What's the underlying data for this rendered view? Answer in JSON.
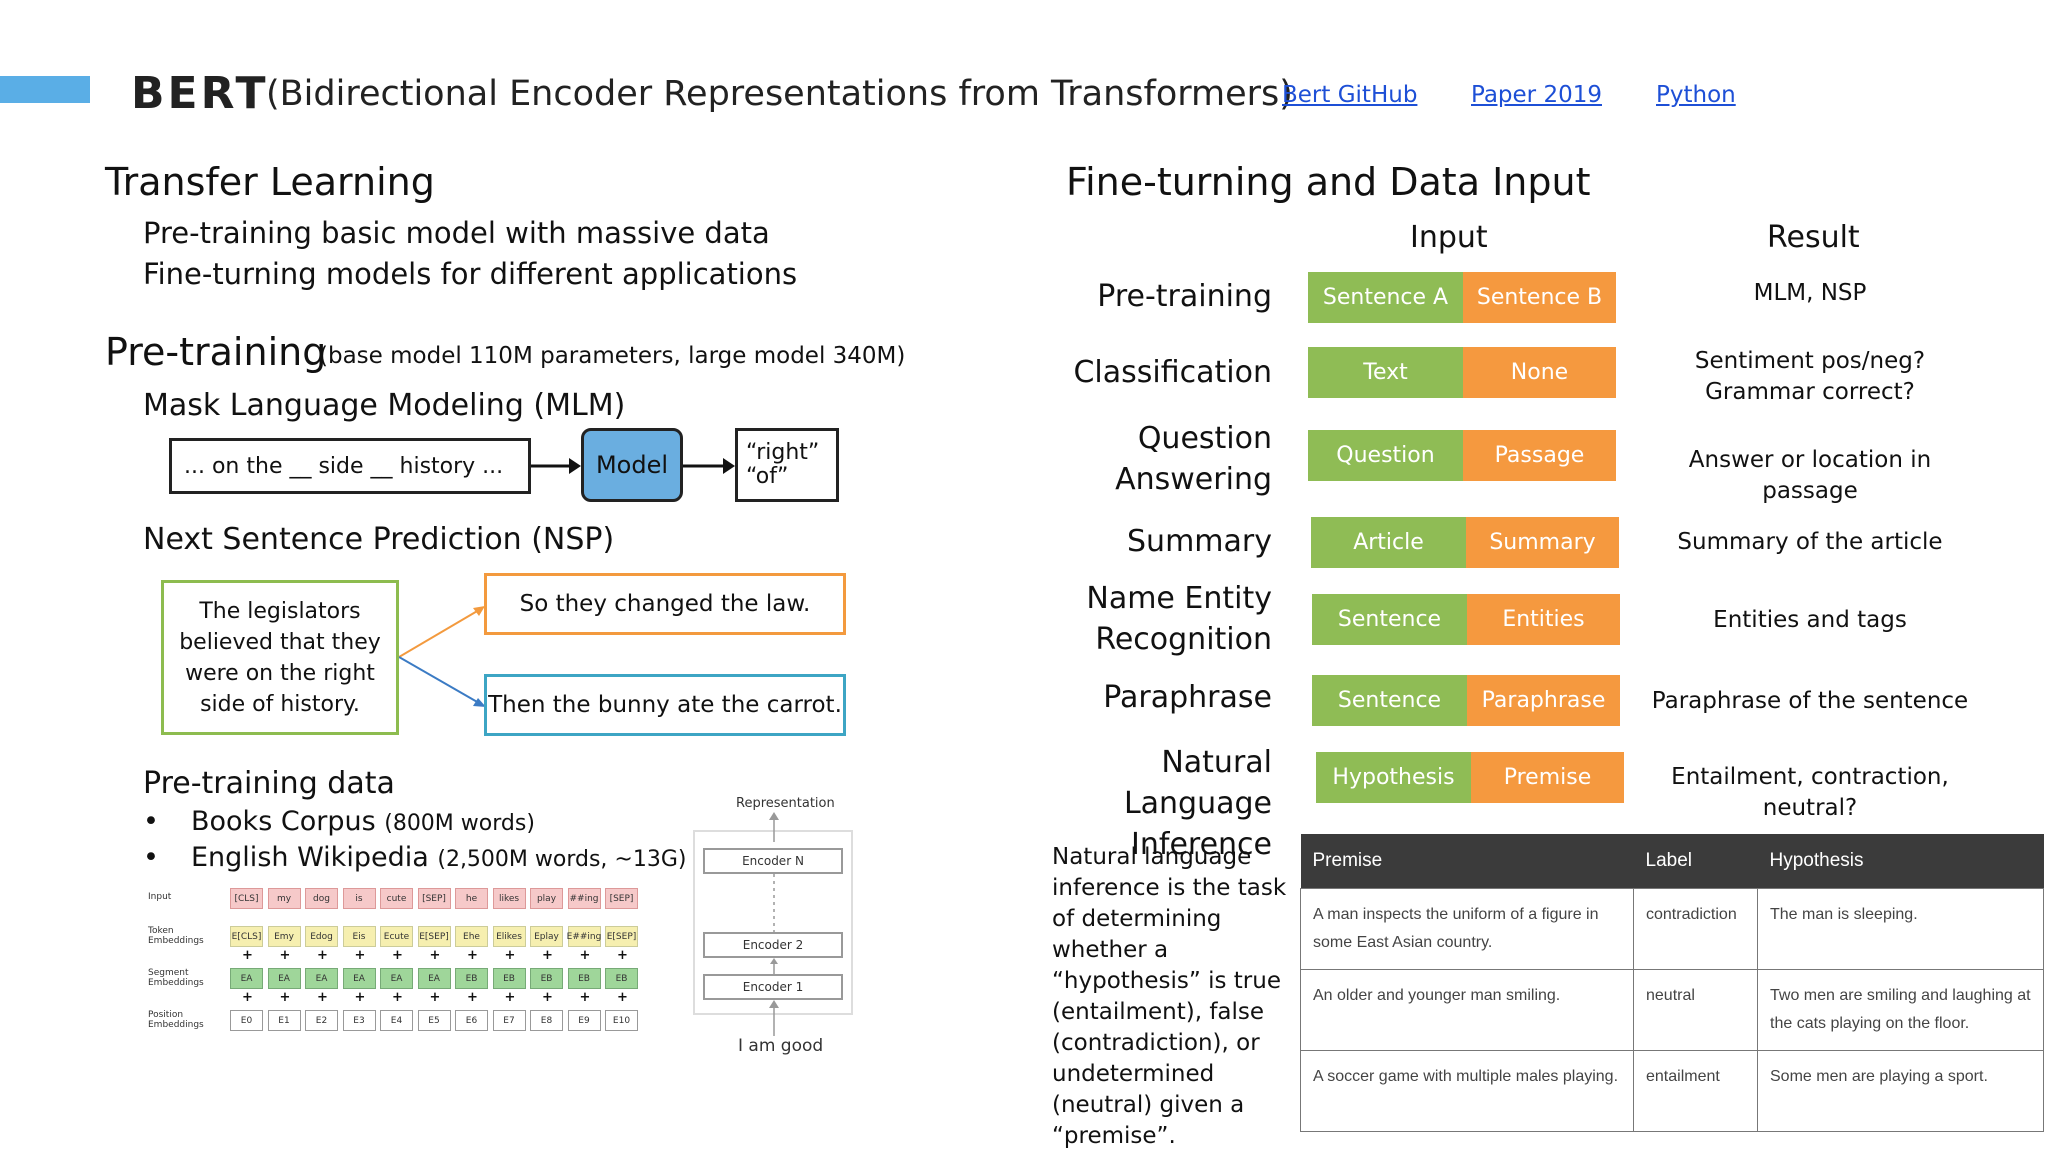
{
  "header": {
    "title": "BERT",
    "subtitle": "(Bidirectional Encoder Representations from Transformers)",
    "links": [
      {
        "label": "Bert GitHub"
      },
      {
        "label": "Paper 2019"
      },
      {
        "label": "Python"
      }
    ],
    "accent_color": "#5aaee6"
  },
  "transfer": {
    "heading": "Transfer Learning",
    "lines": [
      "Pre-training basic model with massive data",
      "Fine-turning models for different applications"
    ]
  },
  "pretraining": {
    "heading": "Pre-training",
    "note": "(base model 110M parameters, large model 340M)",
    "mlm": {
      "heading": "Mask Language Modeling (MLM)",
      "input": "... on the __ side __ history ...",
      "model": "Model",
      "output_line1": "“right”",
      "output_line2": "“of”"
    },
    "nsp": {
      "heading": "Next Sentence Prediction (NSP)",
      "premise": "The legislators believed that they were on the right side of history.",
      "option1": "So they changed the law.",
      "option2": "Then the bunny ate the carrot."
    },
    "data": {
      "heading": "Pre-training data",
      "items": [
        {
          "name": "Books Corpus",
          "detail": "(800M words)"
        },
        {
          "name": "English Wikipedia",
          "detail": "(2,500M words, ~13G)"
        }
      ]
    }
  },
  "embeddings_figure": {
    "row_labels": [
      "Input",
      "Token Embeddings",
      "Segment Embeddings",
      "Position Embeddings"
    ],
    "tokens": [
      "[CLS]",
      "my",
      "dog",
      "is",
      "cute",
      "[SEP]",
      "he",
      "likes",
      "play",
      "##ing",
      "[SEP]"
    ],
    "token_embeddings": [
      "E[CLS]",
      "Emy",
      "Edog",
      "Eis",
      "Ecute",
      "E[SEP]",
      "Ehe",
      "Elikes",
      "Eplay",
      "E##ing",
      "E[SEP]"
    ],
    "segment_embeddings": [
      "EA",
      "EA",
      "EA",
      "EA",
      "EA",
      "EA",
      "EB",
      "EB",
      "EB",
      "EB",
      "EB"
    ],
    "position_embeddings": [
      "E0",
      "E1",
      "E2",
      "E3",
      "E4",
      "E5",
      "E6",
      "E7",
      "E8",
      "E9",
      "E10"
    ]
  },
  "encoder_figure": {
    "top_label": "Representation",
    "encoders": [
      "Encoder N",
      "Encoder 2",
      "Encoder 1"
    ],
    "bottom_label": "I am good"
  },
  "finetune": {
    "heading": "Fine-turning and Data Input",
    "col_input": "Input",
    "col_result": "Result",
    "rows": [
      {
        "task": "Pre-training",
        "a": "Sentence A",
        "b": "Sentence B",
        "result": "MLM, NSP"
      },
      {
        "task": "Classification",
        "a": "Text",
        "b": "None",
        "result": "Sentiment pos/neg? Grammar correct?"
      },
      {
        "task": "Question Answering",
        "a": "Question",
        "b": "Passage",
        "result": "Answer or location in passage"
      },
      {
        "task": "Summary",
        "a": "Article",
        "b": "Summary",
        "result": "Summary of the article"
      },
      {
        "task": "Name Entity Recognition",
        "a": "Sentence",
        "b": "Entities",
        "result": "Entities and tags"
      },
      {
        "task": "Paraphrase",
        "a": "Sentence",
        "b": "Paraphrase",
        "result": "Paraphrase of the sentence"
      },
      {
        "task": "Natural Language Inference",
        "a": "Hypothesis",
        "b": "Premise",
        "result": "Entailment, contraction, neutral?"
      }
    ],
    "green_color": "#8fbc55",
    "orange_color": "#f5993f"
  },
  "nli": {
    "description": "Natural language inference is the task of determining whether a “hypothesis” is true (entailment), false (contradiction), or undetermined (neutral) given a “premise”.",
    "headers": [
      "Premise",
      "Label",
      "Hypothesis"
    ],
    "rows": [
      {
        "premise": "A man inspects the uniform of a figure in some East Asian country.",
        "label": "contradiction",
        "hypothesis": "The man is sleeping."
      },
      {
        "premise": "An older and younger man smiling.",
        "label": "neutral",
        "hypothesis": "Two men are smiling and laughing at the cats playing on the floor."
      },
      {
        "premise": "A soccer game with multiple males playing.",
        "label": "entailment",
        "hypothesis": "Some men are playing a sport."
      }
    ]
  }
}
